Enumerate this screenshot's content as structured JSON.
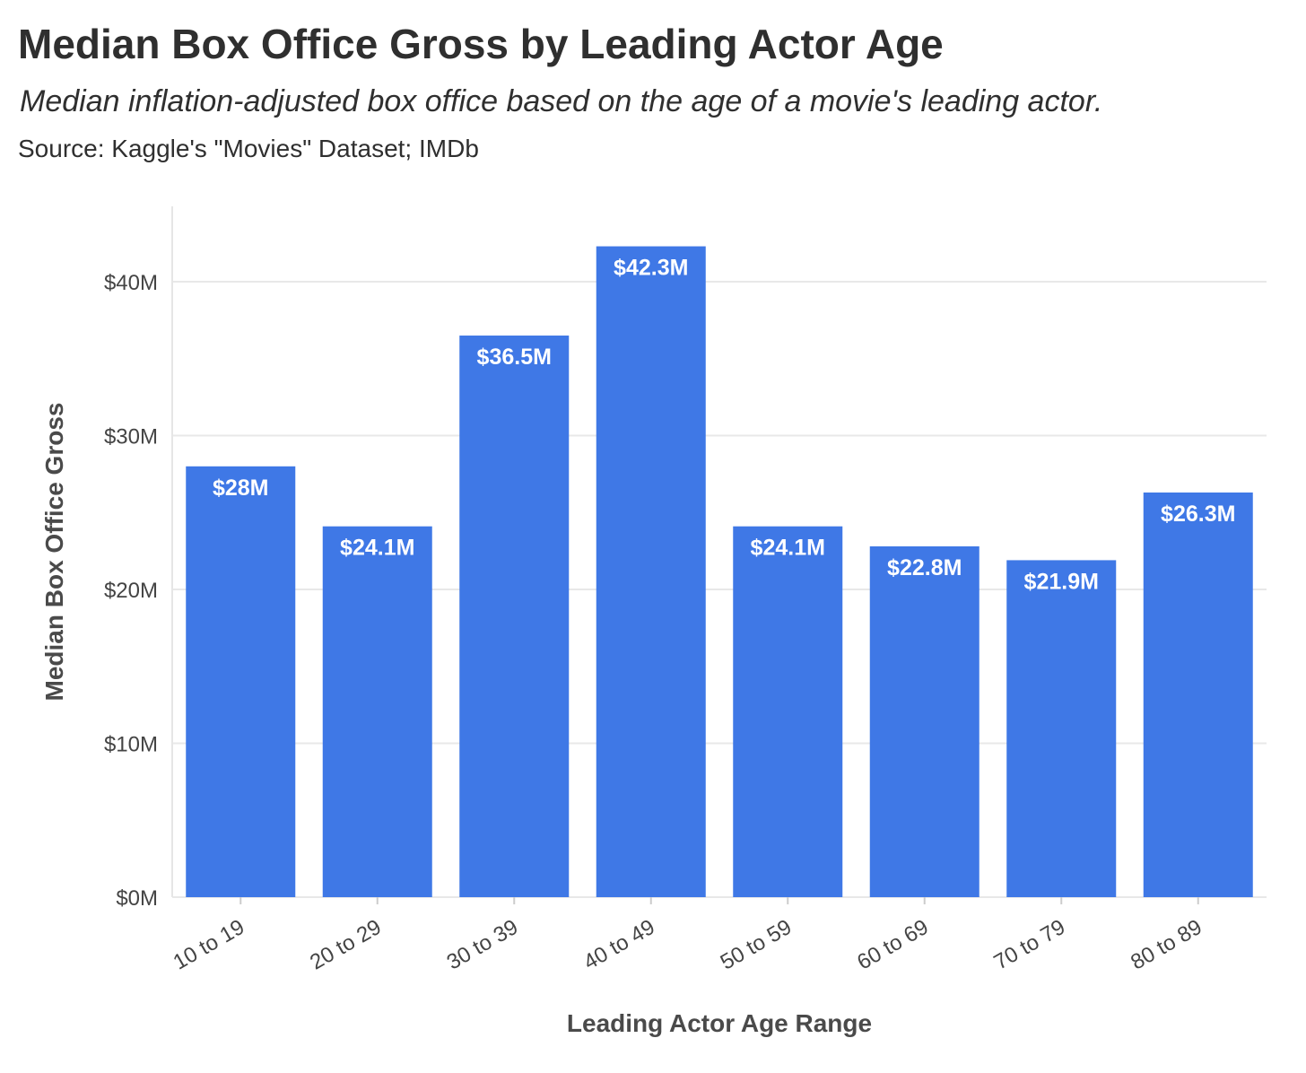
{
  "chart_data": {
    "type": "bar",
    "title": "Median Box Office Gross by Leading Actor Age",
    "subtitle": "Median inflation-adjusted box office based on the age of a movie's leading actor.",
    "source": "Source: Kaggle's \"Movies\" Dataset; IMDb",
    "xlabel": "Leading Actor Age Range",
    "ylabel": "Median Box Office Gross",
    "categories": [
      "10 to 19",
      "20 to 29",
      "30 to 39",
      "40 to 49",
      "50 to 59",
      "60 to 69",
      "70 to 79",
      "80 to 89"
    ],
    "values": [
      28.0,
      24.1,
      36.5,
      42.3,
      24.1,
      22.8,
      21.9,
      26.3
    ],
    "value_labels": [
      "$28M",
      "$24.1M",
      "$36.5M",
      "$42.3M",
      "$24.1M",
      "$22.8M",
      "$21.9M",
      "$26.3M"
    ],
    "unit": "USD millions",
    "yticks": [
      0,
      10,
      20,
      30,
      40
    ],
    "ytick_labels": [
      "$0M",
      "$10M",
      "$20M",
      "$30M",
      "$40M"
    ],
    "ylim": [
      0,
      45
    ],
    "grid": true,
    "legend": "none",
    "bar_color": "#3f78e6"
  }
}
